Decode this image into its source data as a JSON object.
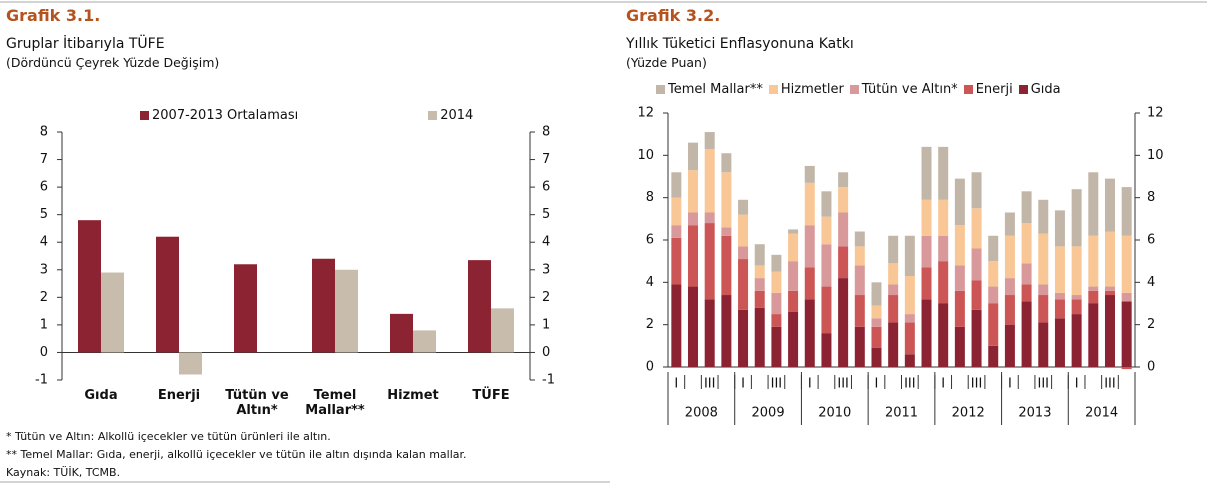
{
  "chart_data": [
    {
      "type": "bar",
      "label": "Grafik 3.1.",
      "title": "Gruplar İtibarıyla TÜFE",
      "subtitle": "(Dördüncü Çeyrek Yüzde Değişim)",
      "categories": [
        "Gıda",
        "Enerji",
        "Tütün ve Altın*",
        "Temel Mallar**",
        "Hizmet",
        "TÜFE"
      ],
      "series": [
        {
          "name": "2007-2013 Ortalaması",
          "color": "#8b2332",
          "values": [
            4.8,
            4.2,
            3.2,
            3.4,
            1.4,
            3.35
          ]
        },
        {
          "name": "2014",
          "color": "#c8bcad",
          "values": [
            2.9,
            -0.8,
            null,
            3.0,
            0.8,
            1.6
          ]
        }
      ],
      "ylim": [
        -1,
        8
      ],
      "yticks": [
        -1,
        0,
        1,
        2,
        3,
        4,
        5,
        6,
        7,
        8
      ],
      "y2lim": [
        -1,
        8
      ],
      "y2ticks": [
        -1,
        0,
        1,
        2,
        3,
        4,
        5,
        6,
        7,
        8
      ],
      "legend": "top"
    },
    {
      "type": "stacked_bar",
      "label": "Grafik 3.2.",
      "title": "Yıllık Tüketici Enflasyonuna Katkı",
      "subtitle": "(Yüzde Puan)",
      "categories": [
        "I",
        null,
        "III",
        null,
        "I",
        null,
        "III",
        null,
        "I",
        null,
        "III",
        null,
        "I",
        null,
        "III",
        null,
        "I",
        null,
        "III",
        null,
        "I",
        null,
        "III",
        null,
        "I",
        null,
        "III",
        null
      ],
      "year_labels": [
        "2008",
        "2009",
        "2010",
        "2011",
        "2012",
        "2013",
        "2014"
      ],
      "series": [
        {
          "name": "Temel Mallar**",
          "color": "#c2b6a8",
          "values": [
            1.2,
            1.3,
            0.8,
            0.9,
            0.7,
            1.0,
            0.8,
            0.2,
            0.8,
            1.2,
            0.7,
            0.7,
            1.1,
            1.3,
            1.9,
            2.5,
            2.5,
            2.2,
            1.7,
            1.2,
            1.1,
            1.5,
            1.6,
            1.7,
            2.7,
            3.0,
            2.5,
            2.3
          ]
        },
        {
          "name": "Hizmetler",
          "color": "#f8c795",
          "values": [
            1.3,
            2.0,
            3.0,
            2.6,
            1.5,
            0.6,
            1.0,
            1.3,
            2.0,
            1.3,
            1.2,
            0.9,
            0.6,
            1.0,
            1.8,
            1.7,
            1.7,
            1.9,
            1.9,
            1.2,
            2.0,
            1.9,
            2.4,
            2.2,
            2.3,
            2.4,
            2.6,
            2.7
          ]
        },
        {
          "name": "Tütün ve Altın*",
          "color": "#d9999a",
          "values": [
            0.6,
            0.6,
            0.5,
            0.4,
            0.6,
            0.6,
            1.0,
            1.4,
            2.0,
            2.0,
            1.6,
            1.4,
            0.4,
            0.5,
            0.4,
            1.5,
            1.2,
            1.2,
            1.5,
            0.8,
            0.8,
            1.0,
            0.5,
            0.3,
            0.2,
            0.2,
            0.2,
            0.4
          ]
        },
        {
          "name": "Enerji",
          "color": "#cc5555",
          "values": [
            2.2,
            2.9,
            3.6,
            2.8,
            2.4,
            0.8,
            0.6,
            1.0,
            1.5,
            2.2,
            1.5,
            1.5,
            1.0,
            1.3,
            1.5,
            1.5,
            2.0,
            1.7,
            1.4,
            2.0,
            1.4,
            0.8,
            1.3,
            0.9,
            0.7,
            0.6,
            0.2,
            -0.1
          ]
        },
        {
          "name": "Gıda",
          "color": "#8b2332",
          "values": [
            3.9,
            3.8,
            3.2,
            3.4,
            2.7,
            2.8,
            1.9,
            2.6,
            3.2,
            1.6,
            4.2,
            1.9,
            0.9,
            2.1,
            0.6,
            3.2,
            3.0,
            1.9,
            2.7,
            1.0,
            2.0,
            3.1,
            2.1,
            2.3,
            2.5,
            3.0,
            3.4,
            3.1
          ]
        }
      ],
      "ylim": [
        0,
        12
      ],
      "yticks": [
        0,
        2,
        4,
        6,
        8,
        10,
        12
      ],
      "y2lim": [
        0,
        12
      ],
      "y2ticks": [
        0,
        2,
        4,
        6,
        8,
        10,
        12
      ],
      "legend": "top"
    }
  ],
  "footnotes": [
    "* Tütün ve Altın: Alkollü içecekler ve tütün ürünleri ile altın.",
    "** Temel Mallar: Gıda, enerji, alkollü içecekler ve tütün ile altın dışında kalan mallar.",
    "Kaynak: TÜİK, TCMB."
  ]
}
